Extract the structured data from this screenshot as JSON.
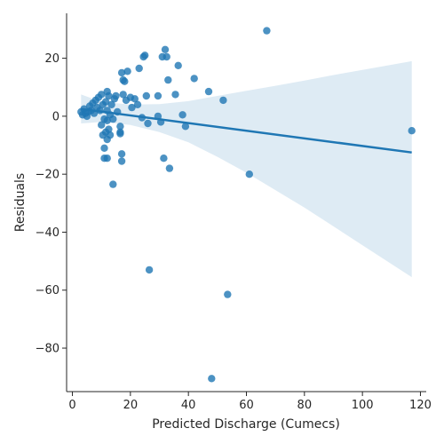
{
  "chart_data": {
    "type": "scatter",
    "title": "",
    "xlabel": "Predicted Discharge (Cumecs)",
    "ylabel": "Residuals",
    "xlim": [
      -2,
      122
    ],
    "ylim": [
      -95,
      35.5
    ],
    "xticks": [
      0,
      20,
      40,
      60,
      80,
      100,
      120
    ],
    "yticks": [
      -80,
      -60,
      -40,
      -20,
      0,
      20
    ],
    "grid": false,
    "legend": "none",
    "colors": {
      "points": "#1f77b4",
      "regression_line": "#1f77b4",
      "confidence_band": "#1f77b4"
    },
    "points": [
      {
        "x": 3.0,
        "y": 1.5
      },
      {
        "x": 3.5,
        "y": 0.5
      },
      {
        "x": 4.0,
        "y": 2.5
      },
      {
        "x": 4.5,
        "y": 1.0
      },
      {
        "x": 5.0,
        "y": 0.0
      },
      {
        "x": 5.5,
        "y": 1.5
      },
      {
        "x": 6.0,
        "y": 3.5
      },
      {
        "x": 6.5,
        "y": 2.0
      },
      {
        "x": 7.0,
        "y": 4.5
      },
      {
        "x": 7.5,
        "y": 1.0
      },
      {
        "x": 8.0,
        "y": 5.5
      },
      {
        "x": 8.5,
        "y": 3.0
      },
      {
        "x": 9.0,
        "y": 6.5
      },
      {
        "x": 9.5,
        "y": 2.0
      },
      {
        "x": 10.0,
        "y": 7.5
      },
      {
        "x": 10.0,
        "y": -3.0
      },
      {
        "x": 10.5,
        "y": -6.5
      },
      {
        "x": 10.5,
        "y": 4.0
      },
      {
        "x": 11.0,
        "y": -1.0
      },
      {
        "x": 11.0,
        "y": -11.0
      },
      {
        "x": 11.0,
        "y": -14.5
      },
      {
        "x": 11.5,
        "y": -5.5
      },
      {
        "x": 11.5,
        "y": 5.0
      },
      {
        "x": 12.0,
        "y": 8.5
      },
      {
        "x": 12.0,
        "y": -14.5
      },
      {
        "x": 12.0,
        "y": -8.0
      },
      {
        "x": 12.0,
        "y": -1.5
      },
      {
        "x": 12.0,
        "y": 2.0
      },
      {
        "x": 12.5,
        "y": -4.5
      },
      {
        "x": 12.5,
        "y": 7.0
      },
      {
        "x": 13.0,
        "y": -6.5
      },
      {
        "x": 13.0,
        "y": 0.5
      },
      {
        "x": 13.5,
        "y": 4.0
      },
      {
        "x": 14.0,
        "y": -1.0
      },
      {
        "x": 14.0,
        "y": -23.5
      },
      {
        "x": 14.5,
        "y": 6.0
      },
      {
        "x": 15.0,
        "y": 7.0
      },
      {
        "x": 15.5,
        "y": 1.5
      },
      {
        "x": 16.5,
        "y": -3.5
      },
      {
        "x": 16.5,
        "y": -5.5
      },
      {
        "x": 16.5,
        "y": -6.0
      },
      {
        "x": 17.0,
        "y": 15.0
      },
      {
        "x": 17.0,
        "y": -13.0
      },
      {
        "x": 17.0,
        "y": -15.5
      },
      {
        "x": 17.5,
        "y": 7.5
      },
      {
        "x": 17.5,
        "y": 12.5
      },
      {
        "x": 18.0,
        "y": 12.0
      },
      {
        "x": 18.5,
        "y": 5.5
      },
      {
        "x": 19.0,
        "y": 15.5
      },
      {
        "x": 20.0,
        "y": 6.5
      },
      {
        "x": 20.5,
        "y": 3.0
      },
      {
        "x": 21.5,
        "y": 6.0
      },
      {
        "x": 22.5,
        "y": 4.0
      },
      {
        "x": 23.0,
        "y": 16.5
      },
      {
        "x": 24.0,
        "y": -0.5
      },
      {
        "x": 24.5,
        "y": 20.5
      },
      {
        "x": 25.0,
        "y": 21.0
      },
      {
        "x": 25.5,
        "y": 7.0
      },
      {
        "x": 26.0,
        "y": -2.5
      },
      {
        "x": 26.5,
        "y": -53.0
      },
      {
        "x": 29.5,
        "y": 7.0
      },
      {
        "x": 29.5,
        "y": 0.0
      },
      {
        "x": 30.5,
        "y": -2.0
      },
      {
        "x": 31.0,
        "y": 20.5
      },
      {
        "x": 31.5,
        "y": -14.5
      },
      {
        "x": 32.0,
        "y": 23.0
      },
      {
        "x": 32.5,
        "y": 20.5
      },
      {
        "x": 33.0,
        "y": 12.5
      },
      {
        "x": 33.5,
        "y": -18.0
      },
      {
        "x": 35.5,
        "y": 7.5
      },
      {
        "x": 36.5,
        "y": 17.5
      },
      {
        "x": 38.0,
        "y": 0.5
      },
      {
        "x": 39.0,
        "y": -3.5
      },
      {
        "x": 42.0,
        "y": 13.0
      },
      {
        "x": 47.0,
        "y": 8.5
      },
      {
        "x": 48.0,
        "y": -90.5
      },
      {
        "x": 52.0,
        "y": 5.5
      },
      {
        "x": 53.5,
        "y": -61.5
      },
      {
        "x": 61.0,
        "y": -20.0
      },
      {
        "x": 67.0,
        "y": 29.5
      },
      {
        "x": 117.0,
        "y": -5.0
      }
    ],
    "regression_line": [
      {
        "x": 3.0,
        "y": 2.5
      },
      {
        "x": 117.0,
        "y": -12.5
      }
    ],
    "confidence_band": {
      "upper": [
        {
          "x": 3.0,
          "y": 7.5
        },
        {
          "x": 10.0,
          "y": 5.0
        },
        {
          "x": 20.0,
          "y": 4.0
        },
        {
          "x": 30.0,
          "y": 4.2
        },
        {
          "x": 40.0,
          "y": 5.2
        },
        {
          "x": 50.0,
          "y": 7.0
        },
        {
          "x": 60.0,
          "y": 8.8
        },
        {
          "x": 70.0,
          "y": 10.5
        },
        {
          "x": 80.0,
          "y": 12.3
        },
        {
          "x": 90.0,
          "y": 14.2
        },
        {
          "x": 100.0,
          "y": 16.0
        },
        {
          "x": 117.0,
          "y": 19.0
        }
      ],
      "lower": [
        {
          "x": 3.0,
          "y": -2.5
        },
        {
          "x": 10.0,
          "y": -2.0
        },
        {
          "x": 20.0,
          "y": -3.0
        },
        {
          "x": 30.0,
          "y": -5.5
        },
        {
          "x": 40.0,
          "y": -9.0
        },
        {
          "x": 50.0,
          "y": -14.0
        },
        {
          "x": 60.0,
          "y": -19.5
        },
        {
          "x": 70.0,
          "y": -25.5
        },
        {
          "x": 80.0,
          "y": -31.5
        },
        {
          "x": 90.0,
          "y": -38.0
        },
        {
          "x": 100.0,
          "y": -44.5
        },
        {
          "x": 117.0,
          "y": -55.5
        }
      ]
    }
  }
}
